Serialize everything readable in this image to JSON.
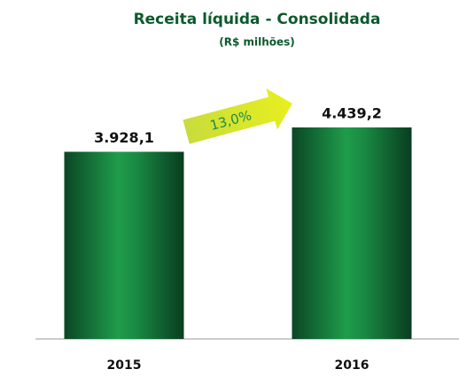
{
  "chart_data": {
    "type": "bar",
    "title": "Receita líquida - Consolidada",
    "subtitle": "(R$ milhões)",
    "categories": [
      "2015",
      "2016"
    ],
    "values": [
      3928.1,
      4439.2
    ],
    "value_labels": [
      "3.928,1",
      "4.439,2"
    ],
    "color": "#1a8a43",
    "annotation": "13,0%"
  }
}
